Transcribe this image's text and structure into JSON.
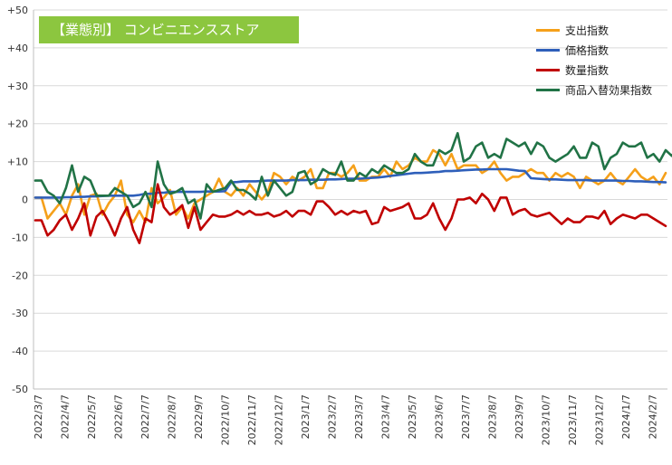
{
  "title": "【業態別】 コンビニエンスストア",
  "chart_data": {
    "type": "line",
    "ylim": [
      -50,
      50
    ],
    "y_tick_labels": [
      "+50",
      "+40",
      "+30",
      "+20",
      "+10",
      "0",
      "-10",
      "-20",
      "-30",
      "-40",
      "-50"
    ],
    "x_tick_labels": [
      "2022/3/7",
      "2022/4/7",
      "2022/5/7",
      "2022/6/7",
      "2022/7/7",
      "2022/8/7",
      "2022/9/7",
      "2022/10/7",
      "2022/11/7",
      "2022/12/7",
      "2023/1/7",
      "2023/2/7",
      "2023/3/7",
      "2023/4/7",
      "2023/5/7",
      "2023/6/7",
      "2023/7/7",
      "2023/8/7",
      "2023/9/7",
      "2023/10/7",
      "2023/11/7",
      "2023/12/7",
      "2024/1/7",
      "2024/2/7"
    ],
    "legend_position": "top-right",
    "grid": true,
    "series": [
      {
        "name": "支出指数",
        "color": "#f5a01a",
        "values": [
          0.5,
          0.5,
          -5,
          -3,
          -1,
          -4,
          1,
          4,
          -4,
          1,
          1.5,
          -4,
          -1,
          1,
          5,
          -4,
          -6,
          -3,
          -6,
          3,
          -1,
          0.5,
          2.5,
          -4,
          -2,
          -5,
          -1,
          0,
          1,
          2,
          5.5,
          2,
          1,
          3,
          1,
          4,
          2,
          0,
          2,
          7,
          6,
          4,
          6,
          5,
          6,
          8,
          3,
          3,
          7,
          7,
          6,
          7,
          9,
          5,
          5,
          6,
          6,
          8,
          6,
          10,
          8,
          9,
          11,
          10,
          10,
          13,
          12,
          9,
          12,
          8,
          9,
          9,
          9,
          7,
          8,
          10,
          7,
          5,
          6,
          6,
          7,
          8,
          7,
          7,
          5,
          7,
          6,
          7,
          6,
          3,
          6,
          5,
          4,
          5,
          7,
          5,
          4,
          6,
          8,
          6,
          5,
          6,
          4,
          7
        ]
      },
      {
        "name": "価格指数",
        "color": "#2e5fba",
        "values": [
          0.5,
          0.5,
          0.5,
          0.5,
          0.5,
          0.6,
          0.6,
          0.7,
          0.7,
          0.8,
          0.8,
          0.9,
          1,
          1,
          1,
          1,
          1,
          1.2,
          1.5,
          1.5,
          1.8,
          1.8,
          2,
          2,
          2,
          2,
          2,
          2,
          2.1,
          2.1,
          2.1,
          2.2,
          4.5,
          4.6,
          4.8,
          4.8,
          4.8,
          4.9,
          5,
          5,
          5,
          5,
          5.1,
          5.1,
          5.1,
          5.2,
          5.2,
          5.2,
          5.3,
          5.3,
          5.4,
          5.5,
          5.5,
          5.5,
          5.6,
          5.7,
          5.8,
          6,
          6.2,
          6.4,
          6.6,
          6.8,
          7,
          7,
          7.1,
          7.2,
          7.3,
          7.5,
          7.5,
          7.6,
          7.7,
          7.8,
          7.9,
          7.9,
          8,
          8,
          8,
          8,
          7.8,
          7.6,
          7.5,
          5.6,
          5.5,
          5.4,
          5.3,
          5.3,
          5.2,
          5.1,
          5.1,
          5.1,
          5.1,
          5,
          5,
          5,
          5,
          5,
          4.9,
          4.9,
          4.8,
          4.8,
          4.7,
          4.6,
          4.6,
          4.5
        ]
      },
      {
        "name": "数量指数",
        "color": "#c00000",
        "values": [
          -5.5,
          -5.5,
          -9.5,
          -8,
          -5.5,
          -4,
          -8,
          -5,
          -1,
          -9.5,
          -4.5,
          -3,
          -6,
          -9.5,
          -5,
          -2,
          -8,
          -11.5,
          -5,
          -6,
          4,
          -2,
          -4,
          -3,
          -1.5,
          -7.5,
          -2,
          -8,
          -6,
          -4,
          -4.5,
          -4.5,
          -4,
          -3,
          -4,
          -3,
          -4,
          -4,
          -3.5,
          -4.5,
          -4,
          -3,
          -4.5,
          -3,
          -3,
          -4,
          -0.5,
          -0.5,
          -2,
          -4,
          -3,
          -4,
          -3,
          -3.5,
          -3,
          -6.5,
          -6,
          -2,
          -3,
          -2.5,
          -2,
          -1,
          -5,
          -5,
          -4,
          -1,
          -5,
          -8,
          -5,
          0,
          0,
          0.5,
          -1,
          1.5,
          0,
          -3,
          0.5,
          0.5,
          -4,
          -3,
          -2.5,
          -4,
          -4.5,
          -4,
          -3.5,
          -5,
          -6.5,
          -5,
          -6,
          -6,
          -4.5,
          -4.5,
          -5,
          -3,
          -6.5,
          -5,
          -4,
          -4.5,
          -5,
          -4,
          -4,
          -5,
          -6,
          -7
        ]
      },
      {
        "name": "商品入替効果指数",
        "color": "#217346",
        "values": [
          5,
          5,
          2,
          1,
          -1,
          3,
          9,
          2,
          6,
          5,
          1,
          1,
          1,
          3,
          2,
          1,
          -2,
          -1,
          2,
          -2,
          10,
          4,
          1.5,
          2,
          3,
          -1,
          0,
          -5,
          4,
          2,
          2.5,
          3,
          5,
          2.5,
          2.5,
          1.5,
          0,
          6,
          1,
          5,
          3,
          1,
          2,
          7,
          7.5,
          4,
          5,
          8,
          7,
          6.5,
          10,
          5,
          5,
          7,
          6,
          8,
          7,
          9,
          8,
          7,
          7,
          8,
          12,
          10,
          9,
          9,
          13,
          12,
          13,
          17.5,
          10,
          11,
          14,
          15,
          11,
          12,
          11,
          16,
          15,
          14,
          15,
          12,
          15,
          14,
          11,
          10,
          11,
          12,
          14,
          11,
          11,
          15,
          14,
          8,
          11,
          12,
          15,
          14,
          14,
          15,
          11,
          12,
          10,
          13,
          11.5,
          14,
          13
        ]
      }
    ]
  }
}
